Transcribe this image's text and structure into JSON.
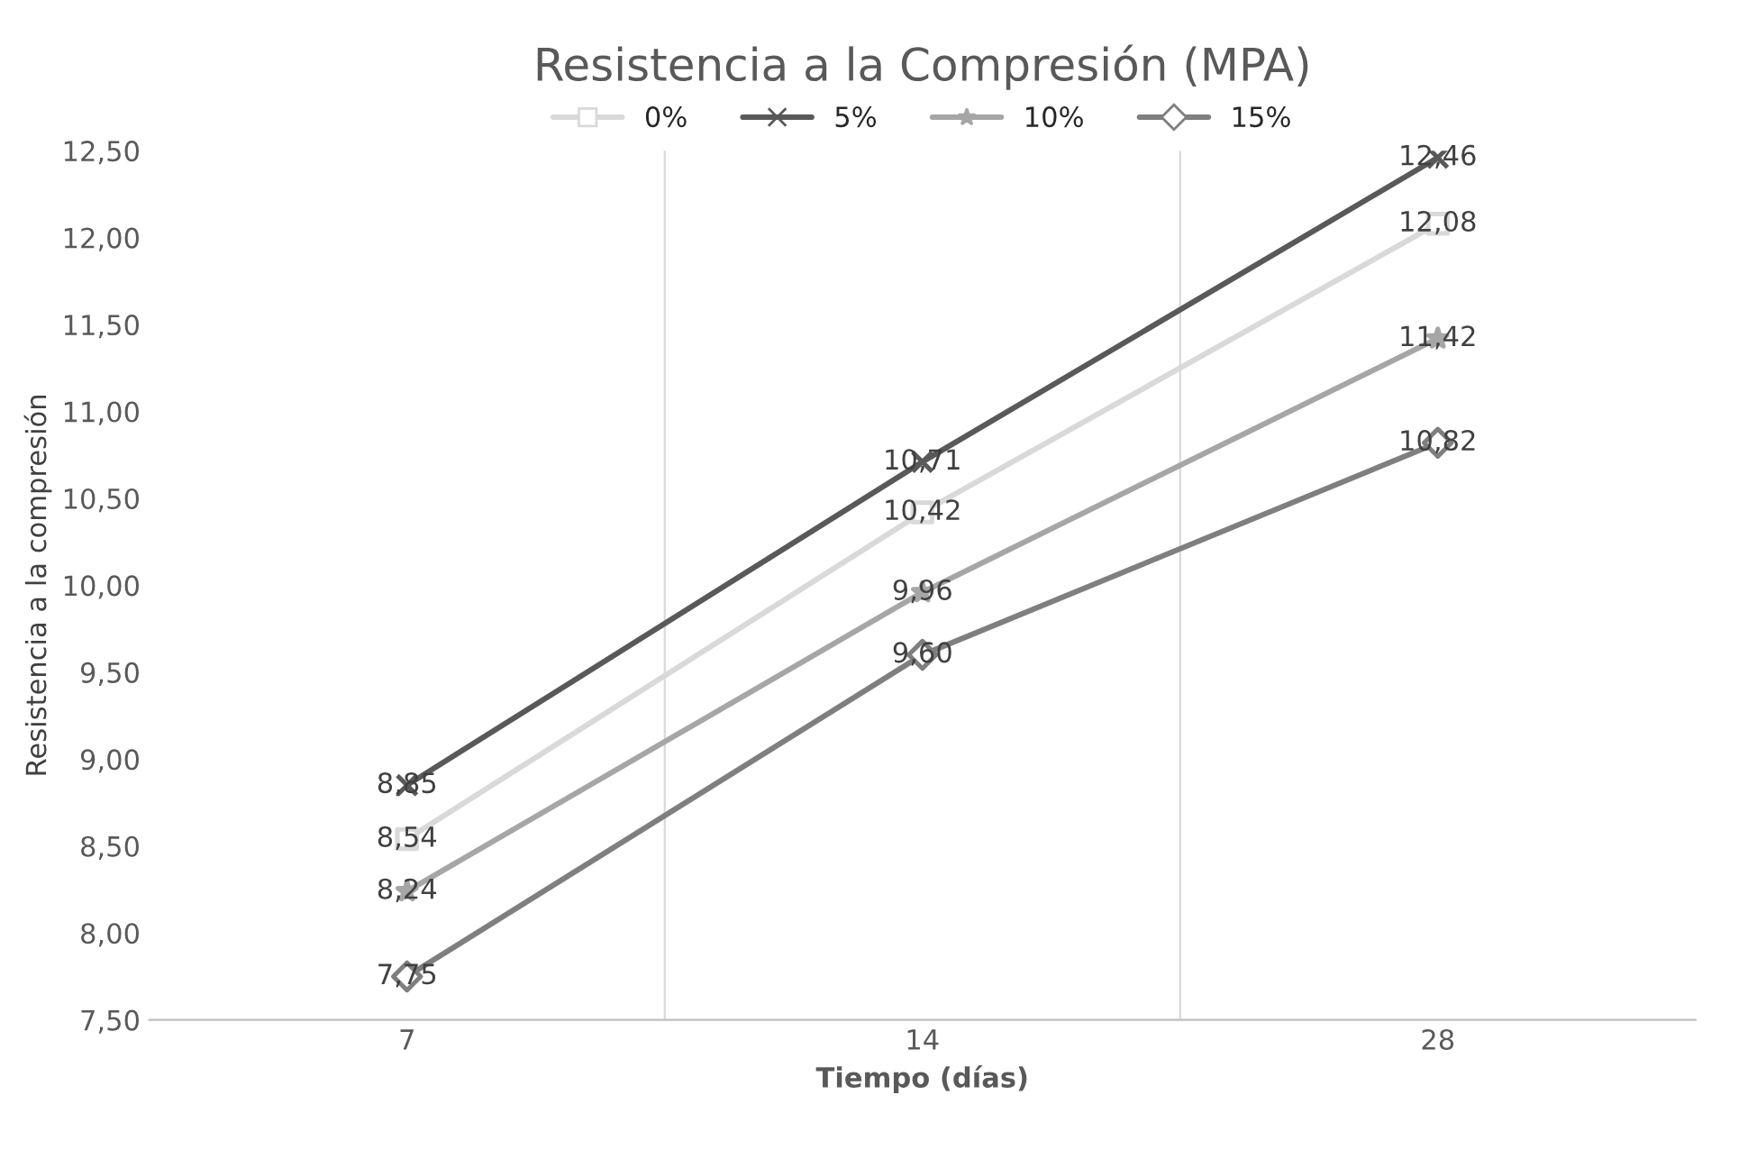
{
  "chart_data": {
    "type": "line",
    "title": "Resistencia a la Compresión (MPA)",
    "xlabel": "Tiempo (días)",
    "ylabel": "Resistencia a la compresión",
    "categories": [
      "7",
      "14",
      "28"
    ],
    "series": [
      {
        "name": "0%",
        "color": "#d9d9d9",
        "marker": "square",
        "values": [
          8.54,
          10.42,
          12.08
        ],
        "value_labels": [
          "8,54",
          "10,42",
          "12,08"
        ]
      },
      {
        "name": "5%",
        "color": "#595959",
        "marker": "cross",
        "values": [
          8.85,
          10.71,
          12.46
        ],
        "value_labels": [
          "8,85",
          "10,71",
          "12,46"
        ]
      },
      {
        "name": "10%",
        "color": "#a6a6a6",
        "marker": "star",
        "values": [
          8.24,
          9.96,
          11.42
        ],
        "value_labels": [
          "8,24",
          "9,96",
          "11,42"
        ]
      },
      {
        "name": "15%",
        "color": "#7f7f7f",
        "marker": "diamond",
        "values": [
          7.75,
          9.6,
          10.82
        ],
        "value_labels": [
          "7,75",
          "9,60",
          "10,82"
        ]
      }
    ],
    "ylim": [
      7.5,
      12.5
    ],
    "yticks": [
      {
        "value": 7.5,
        "label": "7,50"
      },
      {
        "value": 8,
        "label": "8,00"
      },
      {
        "value": 8.5,
        "label": "8,50"
      },
      {
        "value": 9,
        "label": "9,00"
      },
      {
        "value": 9.5,
        "label": "9,50"
      },
      {
        "value": 10,
        "label": "10,00"
      },
      {
        "value": 10.5,
        "label": "10,50"
      },
      {
        "value": 11,
        "label": "11,00"
      },
      {
        "value": 11.5,
        "label": "11,50"
      },
      {
        "value": 12,
        "label": "12,00"
      },
      {
        "value": 12.5,
        "label": "12,50"
      }
    ],
    "grid": "x",
    "legend": "top",
    "line_style": "solid"
  }
}
